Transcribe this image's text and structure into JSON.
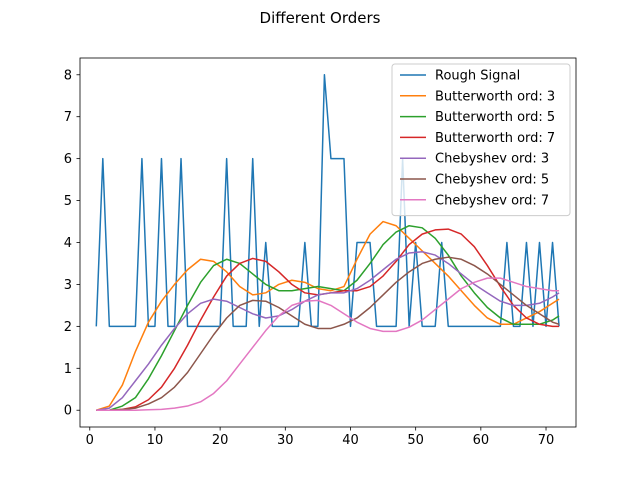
{
  "chart_data": {
    "type": "line",
    "title": "Different Orders",
    "xlabel": "",
    "ylabel": "",
    "xlim": [
      -1.5,
      74.6
    ],
    "ylim": [
      -0.4,
      8.4
    ],
    "x_ticks": [
      0,
      10,
      20,
      30,
      40,
      50,
      60,
      70
    ],
    "y_ticks": [
      0,
      1,
      2,
      3,
      4,
      5,
      6,
      7,
      8
    ],
    "grid": false,
    "legend_position": "top-right",
    "series": [
      {
        "name": "Rough Signal",
        "color": "#1f77b4",
        "x": [
          1,
          2,
          3,
          4,
          5,
          6,
          7,
          8,
          9,
          10,
          11,
          12,
          13,
          14,
          15,
          16,
          17,
          18,
          19,
          20,
          21,
          22,
          23,
          24,
          25,
          26,
          27,
          28,
          29,
          30,
          31,
          32,
          33,
          34,
          35,
          36,
          37,
          38,
          39,
          40,
          41,
          42,
          43,
          44,
          45,
          46,
          47,
          48,
          49,
          50,
          51,
          52,
          53,
          54,
          55,
          56,
          57,
          58,
          59,
          60,
          61,
          62,
          63,
          64,
          65,
          66,
          67,
          68,
          69,
          70,
          71,
          72
        ],
        "y": [
          2,
          6,
          2,
          2,
          2,
          2,
          2,
          6,
          2,
          2,
          6,
          2,
          2,
          6,
          2,
          2,
          2,
          2,
          2,
          2,
          6,
          2,
          2,
          2,
          6,
          2,
          4,
          2,
          2,
          2,
          2,
          2,
          4,
          2,
          2,
          8,
          6,
          6,
          6,
          2,
          4,
          4,
          4,
          2,
          2,
          2,
          2,
          6,
          2,
          4,
          2,
          2,
          2,
          4,
          2,
          2,
          2,
          2,
          2,
          2,
          2,
          2,
          2,
          4,
          2,
          2,
          4,
          2,
          4,
          2,
          4,
          2
        ]
      },
      {
        "name": "Butterworth ord: 3",
        "color": "#ff7f0e",
        "x": [
          1,
          3,
          5,
          7,
          9,
          11,
          13,
          15,
          17,
          19,
          21,
          23,
          25,
          27,
          29,
          31,
          33,
          35,
          37,
          39,
          41,
          43,
          45,
          47,
          49,
          51,
          53,
          55,
          57,
          59,
          61,
          63,
          65,
          67,
          69,
          71,
          72
        ],
        "y": [
          0,
          0.1,
          0.6,
          1.4,
          2.1,
          2.6,
          3.0,
          3.35,
          3.6,
          3.55,
          3.3,
          2.95,
          2.75,
          2.8,
          3.0,
          3.1,
          3.05,
          2.9,
          2.85,
          2.95,
          3.6,
          4.2,
          4.5,
          4.4,
          4.1,
          3.8,
          3.5,
          3.2,
          2.85,
          2.5,
          2.2,
          2.05,
          2.05,
          2.2,
          2.35,
          2.55,
          2.65
        ]
      },
      {
        "name": "Butterworth ord: 5",
        "color": "#2ca02c",
        "x": [
          1,
          3,
          5,
          7,
          9,
          11,
          13,
          15,
          17,
          19,
          21,
          23,
          25,
          27,
          29,
          31,
          33,
          35,
          37,
          39,
          41,
          43,
          45,
          47,
          49,
          51,
          53,
          55,
          57,
          59,
          61,
          63,
          65,
          67,
          69,
          71,
          72
        ],
        "y": [
          0,
          0,
          0.1,
          0.3,
          0.75,
          1.3,
          1.9,
          2.5,
          3.05,
          3.45,
          3.6,
          3.5,
          3.25,
          3.0,
          2.85,
          2.85,
          2.9,
          2.95,
          2.9,
          2.85,
          3.1,
          3.5,
          3.95,
          4.25,
          4.4,
          4.35,
          4.1,
          3.7,
          3.2,
          2.8,
          2.45,
          2.2,
          2.05,
          2.05,
          2.05,
          2.15,
          2.25
        ]
      },
      {
        "name": "Butterworth ord: 7",
        "color": "#d62728",
        "x": [
          1,
          3,
          5,
          7,
          9,
          11,
          13,
          15,
          17,
          19,
          21,
          23,
          25,
          27,
          29,
          31,
          33,
          35,
          37,
          39,
          41,
          43,
          45,
          47,
          49,
          51,
          53,
          55,
          57,
          59,
          61,
          63,
          65,
          67,
          69,
          71,
          72
        ],
        "y": [
          0,
          0,
          0.02,
          0.08,
          0.25,
          0.55,
          1.0,
          1.55,
          2.15,
          2.7,
          3.2,
          3.5,
          3.62,
          3.55,
          3.3,
          3.0,
          2.8,
          2.75,
          2.8,
          2.85,
          2.85,
          2.95,
          3.2,
          3.55,
          3.95,
          4.2,
          4.3,
          4.32,
          4.2,
          3.9,
          3.45,
          2.95,
          2.5,
          2.2,
          2.05,
          2.0,
          2.0
        ]
      },
      {
        "name": "Chebyshev ord: 3",
        "color": "#9467bd",
        "x": [
          1,
          3,
          5,
          7,
          9,
          11,
          13,
          15,
          17,
          19,
          21,
          23,
          25,
          27,
          29,
          31,
          33,
          35,
          37,
          39,
          41,
          43,
          45,
          47,
          49,
          51,
          53,
          55,
          57,
          59,
          61,
          63,
          65,
          67,
          69,
          71,
          72
        ],
        "y": [
          0,
          0.05,
          0.3,
          0.7,
          1.1,
          1.55,
          1.95,
          2.3,
          2.55,
          2.65,
          2.6,
          2.45,
          2.3,
          2.2,
          2.25,
          2.4,
          2.6,
          2.75,
          2.8,
          2.8,
          2.9,
          3.1,
          3.35,
          3.6,
          3.75,
          3.78,
          3.7,
          3.5,
          3.25,
          3.0,
          2.8,
          2.6,
          2.5,
          2.5,
          2.55,
          2.7,
          2.8
        ]
      },
      {
        "name": "Chebyshev ord: 5",
        "color": "#8c564b",
        "x": [
          1,
          3,
          5,
          7,
          9,
          11,
          13,
          15,
          17,
          19,
          21,
          23,
          25,
          27,
          29,
          31,
          33,
          35,
          37,
          39,
          41,
          43,
          45,
          47,
          49,
          51,
          53,
          55,
          57,
          59,
          61,
          63,
          65,
          67,
          69,
          71,
          72
        ],
        "y": [
          0,
          0,
          0.02,
          0.05,
          0.15,
          0.3,
          0.55,
          0.9,
          1.35,
          1.8,
          2.2,
          2.5,
          2.62,
          2.6,
          2.45,
          2.25,
          2.05,
          1.95,
          1.95,
          2.05,
          2.2,
          2.45,
          2.75,
          3.05,
          3.3,
          3.5,
          3.6,
          3.65,
          3.6,
          3.45,
          3.25,
          3.0,
          2.75,
          2.5,
          2.3,
          2.1,
          2.05
        ]
      },
      {
        "name": "Chebyshev ord: 7",
        "color": "#e377c2",
        "x": [
          1,
          3,
          5,
          7,
          9,
          11,
          13,
          15,
          17,
          19,
          21,
          23,
          25,
          27,
          29,
          31,
          33,
          35,
          37,
          39,
          41,
          43,
          45,
          47,
          49,
          51,
          53,
          55,
          57,
          59,
          61,
          63,
          65,
          67,
          69,
          71,
          72
        ],
        "y": [
          0,
          0,
          0,
          0,
          0.01,
          0.02,
          0.05,
          0.1,
          0.2,
          0.4,
          0.7,
          1.1,
          1.5,
          1.9,
          2.25,
          2.5,
          2.6,
          2.62,
          2.5,
          2.3,
          2.1,
          1.95,
          1.88,
          1.88,
          1.98,
          2.15,
          2.4,
          2.65,
          2.9,
          3.05,
          3.15,
          3.15,
          3.05,
          2.95,
          2.9,
          2.85,
          2.85
        ]
      }
    ]
  }
}
